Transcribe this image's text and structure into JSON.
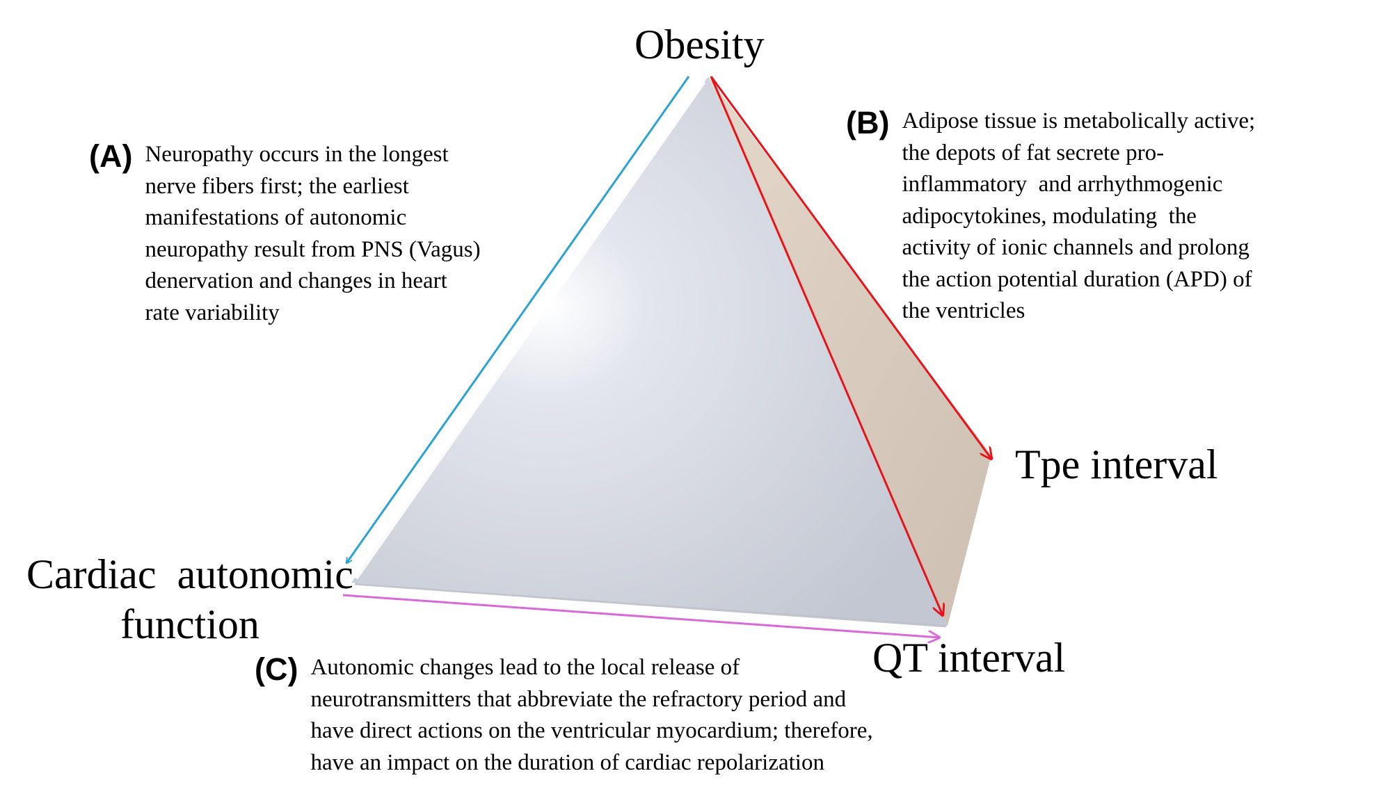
{
  "nodes": {
    "top": "Obesity",
    "right": "Tpe interval",
    "left": [
      "Cardiac  autonomic",
      "function"
    ],
    "bottom": "QT interval"
  },
  "notes": {
    "a": {
      "letter": "(A)",
      "lines": [
        "Neuropathy occurs in the longest",
        "nerve fibers first; the earliest",
        "manifestations of autonomic",
        "neuropathy result from PNS (Vagus)",
        "denervation and changes in heart",
        "rate variability"
      ]
    },
    "b": {
      "letter": "(B)",
      "lines": [
        "Adipose tissue is metabolically active;",
        "the depots of fat secrete pro-",
        "inflammatory  and arrhythmogenic",
        "adipocytokines, modulating  the",
        "activity of ionic channels and prolong",
        "the action potential duration (APD) of",
        "the ventricles"
      ]
    },
    "c": {
      "letter": "(C)",
      "lines": [
        "Autonomic changes lead to the local release of",
        "neurotransmitters that abbreviate the refractory period and",
        "have direct actions on the ventricular myocardium; therefore,",
        "have an impact on the duration of cardiac repolarization"
      ]
    }
  },
  "colors": {
    "front_face": "#c9ccd6",
    "side_face": "#d6c9bc",
    "arrow_blue": "#2aa3d4",
    "arrow_red": "#e8121b",
    "arrow_magenta": "#d86ad8"
  }
}
